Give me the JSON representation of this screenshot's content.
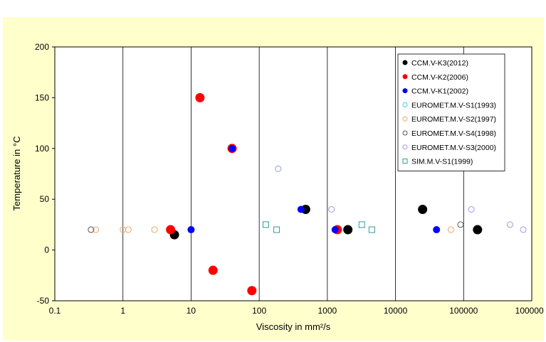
{
  "chart_data": {
    "type": "scatter",
    "title": "",
    "xlabel": "Viscosity in mm²/s",
    "ylabel": "Temperature in °C",
    "xscale": "log",
    "xlim": [
      0.1,
      1000000
    ],
    "ylim": [
      -50,
      200
    ],
    "x_ticks": [
      "0.1",
      "1",
      "10",
      "100",
      "1000",
      "10000",
      "100000",
      "1000000"
    ],
    "y_ticks": [
      "-50",
      "0",
      "50",
      "100",
      "150",
      "200"
    ],
    "grid": "vertical",
    "legend_position": "top-right",
    "series": [
      {
        "name": "CCM.V-K3(2012)",
        "marker": "filled-circle",
        "color": "#000000",
        "points": [
          [
            5.7,
            15
          ],
          [
            480,
            40
          ],
          [
            2000,
            20
          ],
          [
            25000,
            40
          ],
          [
            160000,
            20
          ]
        ]
      },
      {
        "name": "CCM.V-K2(2006)",
        "marker": "filled-circle",
        "color": "#ff0000",
        "points": [
          [
            5,
            20
          ],
          [
            13.5,
            150
          ],
          [
            21,
            -20
          ],
          [
            40,
            100
          ],
          [
            78,
            -40
          ],
          [
            1400,
            20
          ]
        ]
      },
      {
        "name": "CCM.V-K1(2002)",
        "marker": "filled-circle-small",
        "color": "#0000ff",
        "points": [
          [
            10,
            20
          ],
          [
            40,
            100
          ],
          [
            410,
            40
          ],
          [
            1300,
            20
          ],
          [
            40000,
            20
          ]
        ]
      },
      {
        "name": "EUROMET.M.V-S1(1993)",
        "marker": "open-circle",
        "color": "#33ccff",
        "points": []
      },
      {
        "name": "EUROMET.M.V-S2(1997)",
        "marker": "open-circle",
        "color": "#f4a460",
        "points": [
          [
            0.4,
            20
          ],
          [
            1,
            20
          ],
          [
            1.2,
            20
          ],
          [
            2.9,
            20
          ],
          [
            65000,
            20
          ]
        ]
      },
      {
        "name": "EUROMET.M.V-S4(1998)",
        "marker": "open-circle",
        "color": "#555555",
        "points": [
          [
            0.34,
            20
          ],
          [
            90000,
            25
          ]
        ]
      },
      {
        "name": "EUROMET.M.V-S3(2000)",
        "marker": "open-circle",
        "color": "#9999ee",
        "points": [
          [
            190,
            80
          ],
          [
            1150,
            40
          ],
          [
            130000,
            40
          ],
          [
            480000,
            25
          ],
          [
            750000,
            20
          ]
        ]
      },
      {
        "name": "SIM.M.V-S1(1999)",
        "marker": "open-square",
        "color": "#339999",
        "points": [
          [
            125,
            25
          ],
          [
            180,
            20
          ],
          [
            3200,
            25
          ],
          [
            4500,
            20
          ]
        ]
      }
    ]
  }
}
